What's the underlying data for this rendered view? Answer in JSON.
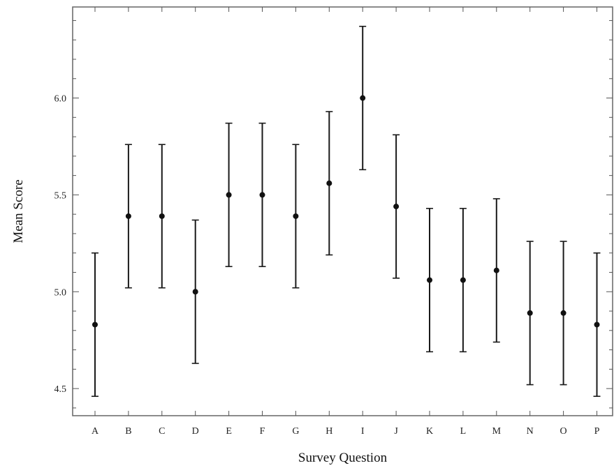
{
  "chart_data": {
    "type": "scatter",
    "title": "",
    "xlabel": "Survey Question",
    "ylabel": "Mean Score",
    "ylim": [
      4.36,
      6.47
    ],
    "yticks": [
      4.5,
      5.0,
      5.5,
      6.0
    ],
    "ytick_labels": [
      "4.5",
      "5.0",
      "5.5",
      "6.0"
    ],
    "grid": false,
    "legend": "none",
    "categories": [
      "A",
      "B",
      "C",
      "D",
      "E",
      "F",
      "G",
      "H",
      "I",
      "J",
      "K",
      "L",
      "M",
      "N",
      "O",
      "P"
    ],
    "series": [
      {
        "values": [
          4.83,
          5.39,
          5.39,
          5.0,
          5.5,
          5.5,
          5.39,
          5.56,
          6.0,
          5.44,
          5.06,
          5.06,
          5.11,
          4.89,
          4.89,
          4.83
        ],
        "lower": [
          4.46,
          5.02,
          5.02,
          4.63,
          5.13,
          5.13,
          5.02,
          5.19,
          5.63,
          5.07,
          4.69,
          4.69,
          4.74,
          4.52,
          4.52,
          4.46
        ],
        "upper": [
          5.2,
          5.76,
          5.76,
          5.37,
          5.87,
          5.87,
          5.76,
          5.93,
          6.37,
          5.81,
          5.43,
          5.43,
          5.48,
          5.26,
          5.26,
          5.2
        ]
      }
    ],
    "colors": {
      "marker": "#111111",
      "frame": "#6e6e6e"
    }
  }
}
